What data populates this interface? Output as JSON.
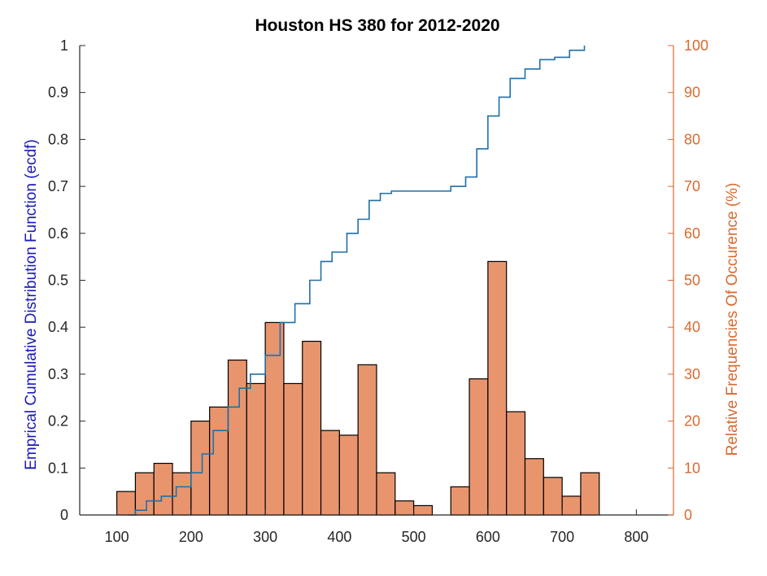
{
  "chart_data": {
    "type": "histogram-with-ecdf",
    "title": "Houston HS 380 for 2012-2020",
    "xlabel": "",
    "xlim": [
      50,
      850
    ],
    "x_ticks": [
      100,
      200,
      300,
      400,
      500,
      600,
      700,
      800
    ],
    "left_axis": {
      "label": "Emprical Cumulative Distribution Function (ecdf)",
      "ylim": [
        0,
        1
      ],
      "ticks": [
        "0",
        "0.1",
        "0.2",
        "0.3",
        "0.4",
        "0.5",
        "0.6",
        "0.7",
        "0.8",
        "0.9",
        "1"
      ],
      "color": "#1a1ab8"
    },
    "right_axis": {
      "label": "Relative Frequencies Of Occurence (%)",
      "ylim": [
        0,
        100
      ],
      "ticks": [
        "0",
        "10",
        "20",
        "30",
        "40",
        "50",
        "60",
        "70",
        "80",
        "90",
        "100"
      ],
      "color": "#d96a2f"
    },
    "histogram": {
      "bin_width": 25,
      "bin_edges_start": 100,
      "bar_color": "#e8956e",
      "edge_color": "#000000",
      "values": [
        5,
        9,
        11,
        9,
        20,
        23,
        33,
        28,
        41,
        28,
        37,
        18,
        17,
        32,
        9,
        3,
        2,
        0,
        6,
        29,
        54,
        22,
        12,
        8,
        4,
        9
      ]
    },
    "ecdf": {
      "color": "#1f6fa8",
      "x": [
        115,
        125,
        140,
        160,
        180,
        200,
        215,
        230,
        250,
        265,
        280,
        300,
        320,
        340,
        360,
        375,
        390,
        410,
        425,
        440,
        455,
        470,
        490,
        510,
        530,
        550,
        570,
        585,
        600,
        615,
        630,
        650,
        670,
        690,
        710,
        730
      ],
      "y": [
        0.0,
        0.01,
        0.03,
        0.04,
        0.06,
        0.09,
        0.13,
        0.18,
        0.23,
        0.27,
        0.3,
        0.34,
        0.41,
        0.45,
        0.5,
        0.54,
        0.56,
        0.6,
        0.63,
        0.67,
        0.685,
        0.69,
        0.69,
        0.69,
        0.69,
        0.7,
        0.72,
        0.78,
        0.85,
        0.89,
        0.93,
        0.95,
        0.97,
        0.975,
        0.99,
        1.0
      ]
    }
  }
}
